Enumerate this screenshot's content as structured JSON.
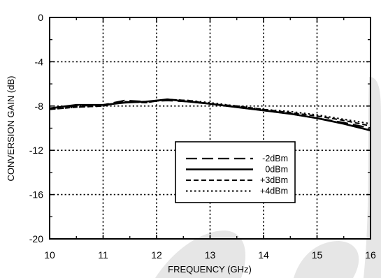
{
  "chart_data": {
    "type": "line",
    "title": "",
    "xlabel": "FREQUENCY (GHz)",
    "ylabel": "CONVERSION GAIN (dB)",
    "xlim": [
      10,
      16
    ],
    "ylim": [
      -20,
      0
    ],
    "xticks": [
      "10",
      "11",
      "12",
      "13",
      "14",
      "15",
      "16"
    ],
    "yticks": [
      "0",
      "-4",
      "-8",
      "-12",
      "-16",
      "-20"
    ],
    "grid": true,
    "legend_position": "center-right",
    "x": [
      10,
      10.5,
      11,
      11.4,
      11.8,
      12.2,
      12.6,
      13,
      13.5,
      14,
      14.5,
      15,
      15.5,
      16
    ],
    "series": [
      {
        "name": "-2dBm",
        "line_style": "long-dash",
        "values": [
          -8.2,
          -8.0,
          -7.9,
          -7.5,
          -7.6,
          -7.5,
          -7.6,
          -7.8,
          -8.1,
          -8.4,
          -8.7,
          -9.1,
          -9.5,
          -10.0
        ]
      },
      {
        "name": "0dBm",
        "line_style": "solid",
        "values": [
          -8.2,
          -7.9,
          -7.9,
          -7.7,
          -7.6,
          -7.4,
          -7.6,
          -7.8,
          -8.1,
          -8.4,
          -8.7,
          -9.1,
          -9.6,
          -10.2
        ]
      },
      {
        "name": "+3dBm",
        "line_style": "dash",
        "values": [
          -8.3,
          -8.1,
          -8.0,
          -7.6,
          -7.7,
          -7.4,
          -7.5,
          -7.8,
          -8.0,
          -8.3,
          -8.6,
          -8.9,
          -9.3,
          -9.8
        ]
      },
      {
        "name": "+4dBm",
        "line_style": "dot",
        "values": [
          -8.3,
          -8.1,
          -8.0,
          -7.6,
          -7.7,
          -7.4,
          -7.5,
          -7.7,
          -8.0,
          -8.3,
          -8.5,
          -8.8,
          -9.2,
          -9.6
        ]
      }
    ]
  }
}
